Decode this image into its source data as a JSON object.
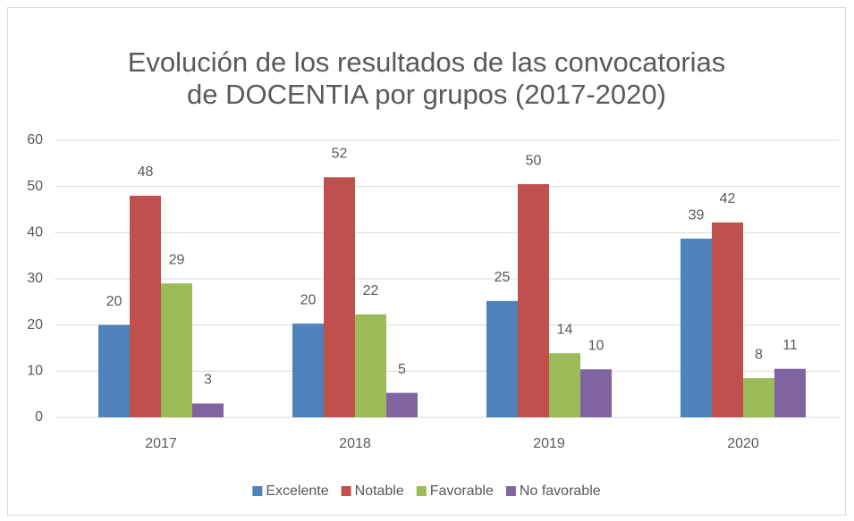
{
  "chart_data": {
    "type": "bar",
    "title": [
      "Evolución de los resultados de las convocatorias",
      "de DOCENTIA por grupos (2017-2020)"
    ],
    "categories": [
      "2017",
      "2018",
      "2019",
      "2020"
    ],
    "series": [
      {
        "name": "Excelente",
        "color": "#4f81bd",
        "values": [
          20,
          20.3,
          25.2,
          38.7
        ],
        "value_labels": [
          "20",
          "20",
          "25",
          "39"
        ]
      },
      {
        "name": "Notable",
        "color": "#c0504d",
        "values": [
          48,
          52,
          50.5,
          42.2
        ],
        "value_labels": [
          "48",
          "52",
          "50",
          "42"
        ]
      },
      {
        "name": "Favorable",
        "color": "#9bbb59",
        "values": [
          29,
          22.3,
          13.9,
          8.5
        ],
        "value_labels": [
          "29",
          "22",
          "14",
          "8"
        ]
      },
      {
        "name": "No favorable",
        "color": "#8064a2",
        "values": [
          3,
          5.3,
          10.4,
          10.5
        ],
        "value_labels": [
          "3",
          "5",
          "10",
          "11"
        ]
      }
    ],
    "ylim": [
      0,
      60
    ],
    "yticks": [
      0,
      10,
      20,
      30,
      40,
      50,
      60
    ],
    "grid": true,
    "legend": "bottom"
  }
}
